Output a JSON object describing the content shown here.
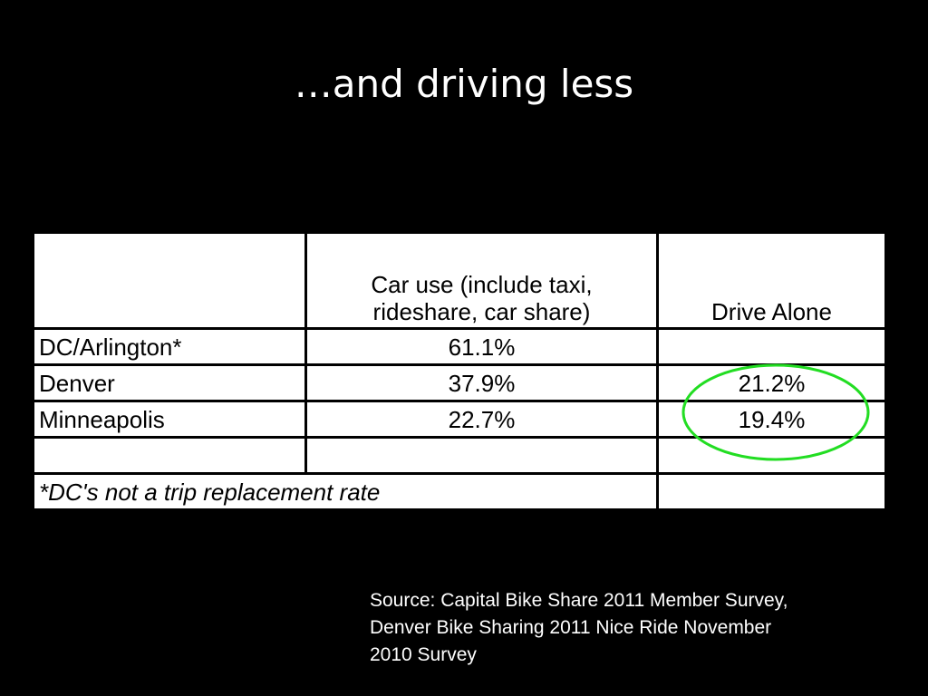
{
  "title": "…and driving less",
  "table": {
    "header": {
      "car_use": [
        "Car use (include taxi,",
        "rideshare, car share)"
      ],
      "drive_alone": "Drive Alone"
    },
    "rows": [
      {
        "label": "DC/Arlington*",
        "car_use": "61.1%"
      },
      {
        "label": "Denver",
        "car_use": "37.9%",
        "drive_alone": "21.2%"
      },
      {
        "label": "Minneapolis",
        "car_use": "22.7%",
        "drive_alone": "19.4%"
      }
    ],
    "footnote": "*DC's not a trip replacement rate"
  },
  "source": [
    "Source: Capital Bike Share 2011 Member Survey,",
    "Denver Bike Sharing 2011 Nice Ride November",
    "2010 Survey"
  ]
}
